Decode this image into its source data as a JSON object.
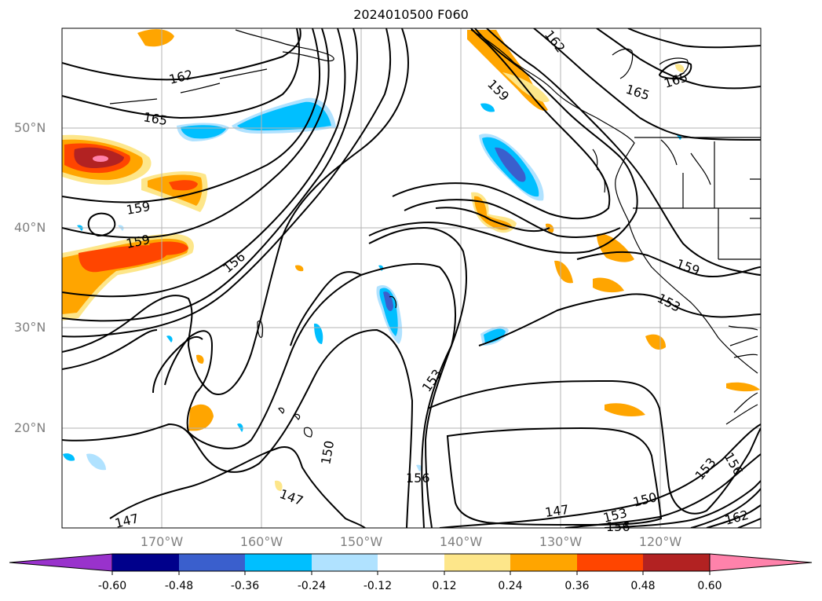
{
  "title": "2024010500 F060",
  "longitude_labels": [
    "170°W",
    "160°W",
    "150°W",
    "140°W",
    "130°W",
    "120°W"
  ],
  "latitude_labels": [
    "50°N",
    "40°N",
    "30°N",
    "20°N"
  ],
  "colorbar": {
    "tick_labels": [
      "-0.60",
      "-0.48",
      "-0.36",
      "-0.24",
      "-0.12",
      "0.12",
      "0.24",
      "0.36",
      "0.48",
      "0.60"
    ],
    "colors": [
      "#9932cc",
      "#00008b",
      "#3a5fcd",
      "#00bfff",
      "#b0e2ff",
      "#ffffff",
      "#fde68a",
      "#ffa500",
      "#ff4500",
      "#b22222",
      "#ff82ab"
    ]
  },
  "contour_labels": [
    "162",
    "165",
    "159",
    "159",
    "156",
    "147",
    "150",
    "153",
    "156",
    "147",
    "150",
    "153",
    "156",
    "159",
    "153",
    "159",
    "162",
    "165",
    "165",
    "162",
    "156",
    "153"
  ],
  "colors": {
    "contour": "#000000",
    "grid": "#b3b3b3",
    "coast": "#000000"
  }
}
